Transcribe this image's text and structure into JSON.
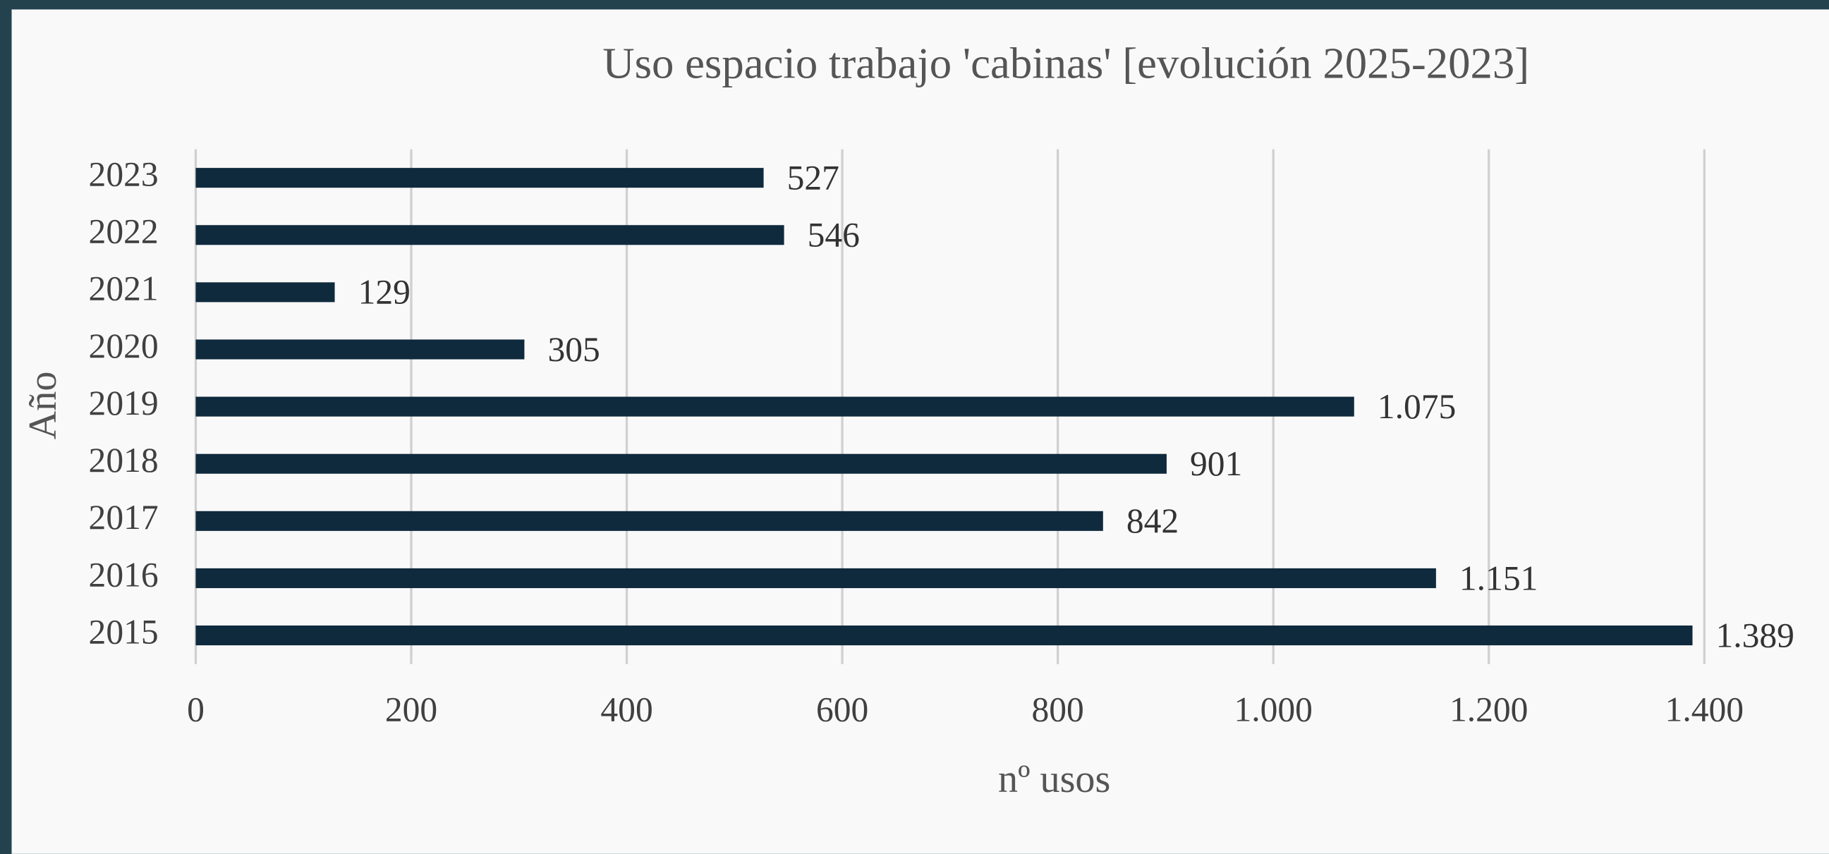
{
  "chart_data": {
    "type": "bar",
    "orientation": "horizontal",
    "title": "Uso espacio trabajo 'cabinas' [evolución 2025-2023]",
    "x_label": "nº usos",
    "y_label": "Año",
    "categories": [
      "2023",
      "2022",
      "2021",
      "2020",
      "2019",
      "2018",
      "2017",
      "2016",
      "2015"
    ],
    "values": [
      527,
      546,
      129,
      305,
      1075,
      901,
      842,
      1151,
      1389
    ],
    "value_labels": [
      "527",
      "546",
      "129",
      "305",
      "1.075",
      "901",
      "842",
      "1.151",
      "1.389"
    ],
    "color": "#0f2a3d",
    "xlim": [
      0,
      1400
    ],
    "xticks": [
      0,
      200,
      400,
      600,
      800,
      {
        "value": 1000,
        "label": "1.000"
      },
      {
        "value": 1200,
        "label": "1.200"
      },
      {
        "value": 1400,
        "label": "1.400"
      }
    ],
    "grid": true
  }
}
